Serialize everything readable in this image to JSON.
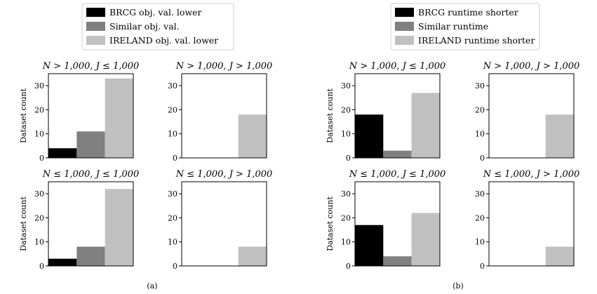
{
  "chart_data": [
    {
      "panel_group": "(a)",
      "legend": [
        {
          "label": "BRCG obj. val. lower",
          "color": "#000000"
        },
        {
          "label": "Similar obj. val.",
          "color": "#808080"
        },
        {
          "label": "IRELAND obj. val. lower",
          "color": "#c0c0c0"
        }
      ],
      "subplots": [
        {
          "type": "bar",
          "title": "N > 1,000, J ≤ 1,000",
          "ylabel": "Dataset count",
          "ylim": [
            0,
            35
          ],
          "yticks": [
            0,
            10,
            20,
            30
          ],
          "values": [
            4,
            11,
            33
          ]
        },
        {
          "type": "bar",
          "title": "N > 1,000, J > 1,000",
          "ylabel": "",
          "ylim": [
            0,
            35
          ],
          "yticks": [
            0,
            10,
            20,
            30
          ],
          "values": [
            0,
            0,
            18
          ]
        },
        {
          "type": "bar",
          "title": "N ≤ 1,000, J ≤ 1,000",
          "ylabel": "Dataset count",
          "ylim": [
            0,
            35
          ],
          "yticks": [
            0,
            10,
            20,
            30
          ],
          "values": [
            3,
            8,
            32
          ]
        },
        {
          "type": "bar",
          "title": "N ≤ 1,000, J > 1,000",
          "ylabel": "",
          "ylim": [
            0,
            35
          ],
          "yticks": [
            0,
            10,
            20,
            30
          ],
          "values": [
            0,
            0,
            8
          ]
        }
      ]
    },
    {
      "panel_group": "(b)",
      "legend": [
        {
          "label": "BRCG runtime shorter",
          "color": "#000000"
        },
        {
          "label": "Similar runtime",
          "color": "#808080"
        },
        {
          "label": "IRELAND runtime shorter",
          "color": "#c0c0c0"
        }
      ],
      "subplots": [
        {
          "type": "bar",
          "title": "N > 1,000, J ≤ 1,000",
          "ylabel": "Dataset count",
          "ylim": [
            0,
            35
          ],
          "yticks": [
            0,
            10,
            20,
            30
          ],
          "values": [
            18,
            3,
            27
          ]
        },
        {
          "type": "bar",
          "title": "N > 1,000, J > 1,000",
          "ylabel": "",
          "ylim": [
            0,
            35
          ],
          "yticks": [
            0,
            10,
            20,
            30
          ],
          "values": [
            0,
            0,
            18
          ]
        },
        {
          "type": "bar",
          "title": "N ≤ 1,000, J ≤ 1,000",
          "ylabel": "Dataset count",
          "ylim": [
            0,
            35
          ],
          "yticks": [
            0,
            10,
            20,
            30
          ],
          "values": [
            17,
            4,
            22
          ]
        },
        {
          "type": "bar",
          "title": "N ≤ 1,000, J > 1,000",
          "ylabel": "",
          "ylim": [
            0,
            35
          ],
          "yticks": [
            0,
            10,
            20,
            30
          ],
          "values": [
            0,
            0,
            8
          ]
        }
      ]
    }
  ]
}
